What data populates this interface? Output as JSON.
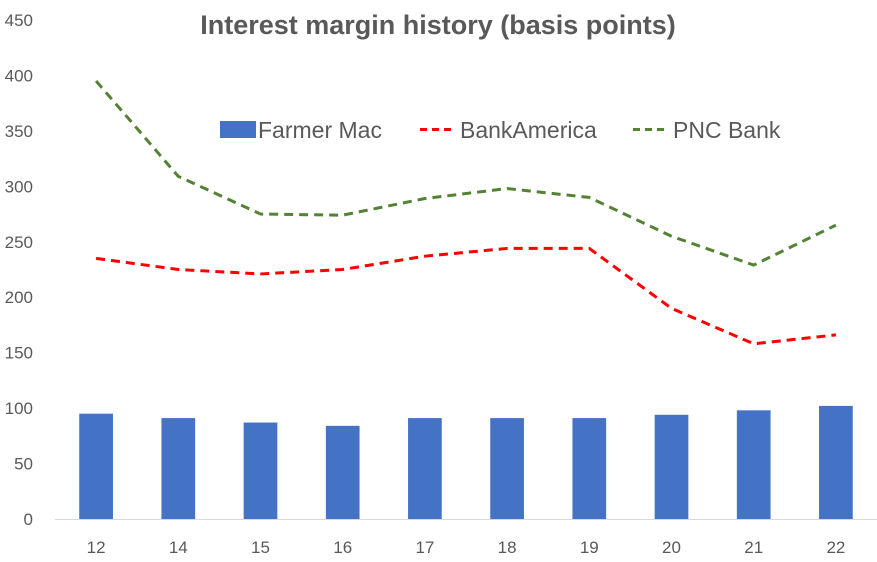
{
  "chart_data": {
    "type": "bar",
    "title": "Interest margin history (basis points)",
    "xlabel": "",
    "ylabel": "",
    "categories": [
      "12",
      "14",
      "15",
      "16",
      "17",
      "18",
      "19",
      "20",
      "21",
      "22"
    ],
    "ylim": [
      0,
      450
    ],
    "yticks": [
      "0",
      "50",
      "100",
      "150",
      "200",
      "250",
      "300",
      "350",
      "400",
      "450"
    ],
    "grid": false,
    "legend_position": "top",
    "series": [
      {
        "name": "Farmer Mac",
        "type": "bar",
        "color": "#4472C4",
        "values": [
          95,
          91,
          87,
          84,
          91,
          91,
          91,
          94,
          98,
          102
        ]
      },
      {
        "name": "BankAmerica",
        "type": "line",
        "style": "dashed",
        "color": "#FF0000",
        "values": [
          235,
          225,
          221,
          225,
          237,
          244,
          244,
          190,
          158,
          166
        ]
      },
      {
        "name": "PNC Bank",
        "type": "line",
        "style": "dashed",
        "color": "#548235",
        "values": [
          395,
          309,
          275,
          274,
          289,
          298,
          290,
          255,
          229,
          265
        ]
      }
    ]
  }
}
